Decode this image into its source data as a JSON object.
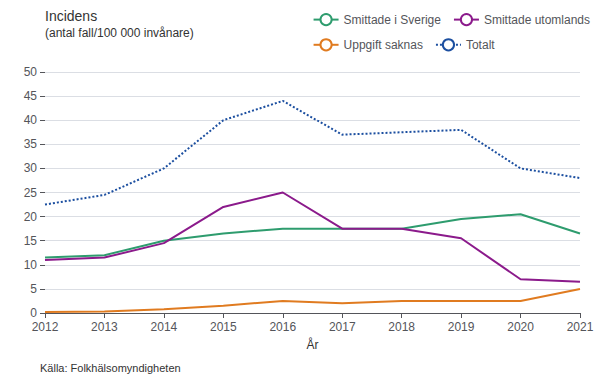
{
  "chart_data": {
    "type": "line",
    "title": "Incidens",
    "subtitle": "(antal fall/100 000 invånare)",
    "x_label": "År",
    "annotation": "Källa: Folkhälsomyndigheten",
    "x": [
      2012,
      2013,
      2014,
      2015,
      2016,
      2017,
      2018,
      2019,
      2020,
      2021
    ],
    "series": [
      {
        "name": "Smittade i Sverige",
        "color": "#2e9c6e",
        "line_style": "solid",
        "values": [
          11.5,
          12.0,
          15.0,
          16.5,
          17.5,
          17.5,
          17.5,
          19.5,
          20.5,
          16.5
        ]
      },
      {
        "name": "Smittade utomlands",
        "color": "#8b1a8b",
        "line_style": "solid",
        "values": [
          11.0,
          11.5,
          14.5,
          22.0,
          25.0,
          17.5,
          17.5,
          15.5,
          7.0,
          6.5
        ]
      },
      {
        "name": "Uppgift saknas",
        "color": "#e07b20",
        "line_style": "solid",
        "values": [
          0.2,
          0.3,
          0.8,
          1.5,
          2.5,
          2.0,
          2.5,
          2.5,
          2.5,
          5.0
        ]
      },
      {
        "name": "Totalt",
        "color": "#1c4fa0",
        "line_style": "dotted",
        "values": [
          22.5,
          24.5,
          30.0,
          40.0,
          44.0,
          37.0,
          37.5,
          38.0,
          30.0,
          28.0
        ]
      }
    ],
    "xlim": [
      2012,
      2021
    ],
    "xticks": [
      2012,
      2013,
      2014,
      2015,
      2016,
      2017,
      2018,
      2019,
      2020,
      2021
    ],
    "ylim": [
      0,
      50
    ],
    "yticks": [
      0,
      5,
      10,
      15,
      20,
      25,
      30,
      35,
      40,
      45,
      50
    ],
    "grid": true,
    "legend": "top"
  }
}
